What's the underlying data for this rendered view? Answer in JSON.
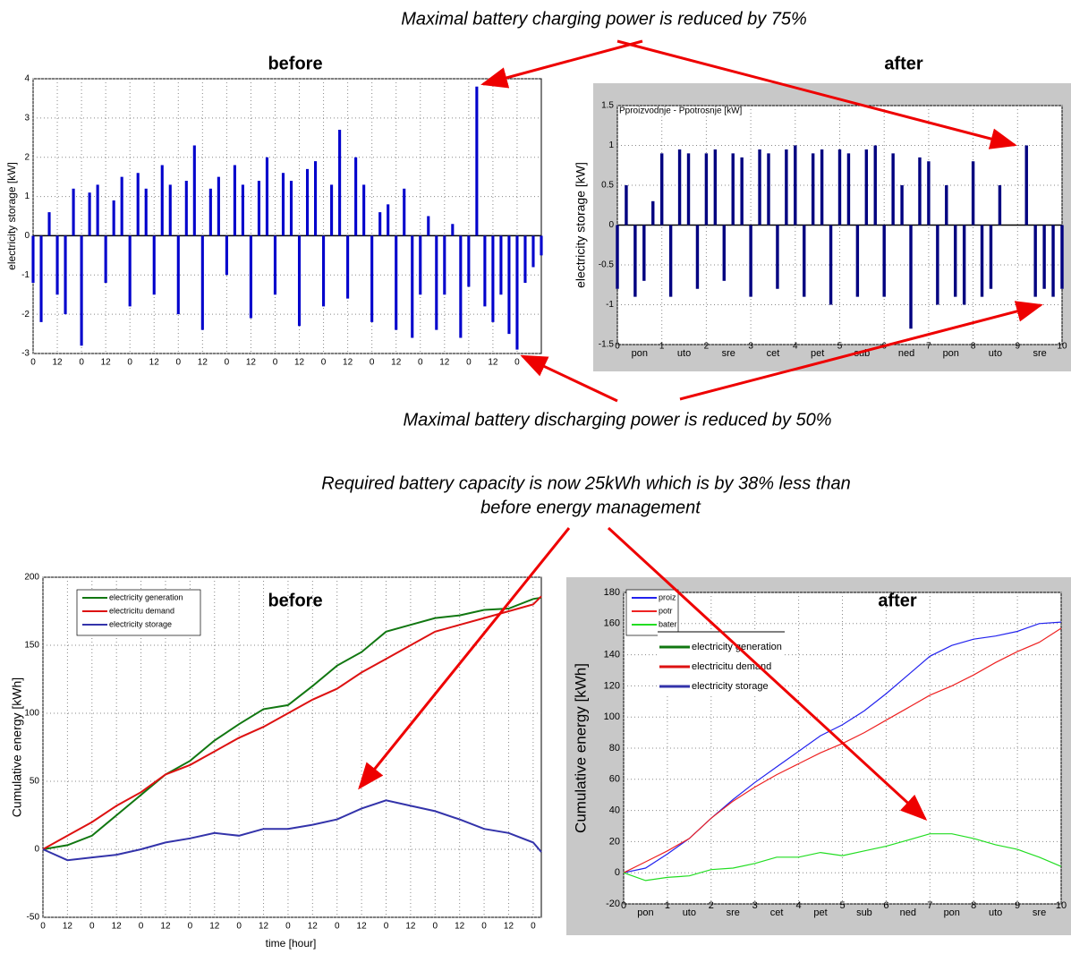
{
  "annotations": [
    "Maximal battery charging power is reduced by 75%",
    "Maximal battery discharging power is reduced by 50%",
    "Required battery capacity is now 25kWh which is by 38% less than",
    "before energy management"
  ],
  "chart_data": [
    {
      "type": "bar",
      "title": "before",
      "ylabel": "electricity storage [kW]",
      "color": "#0000cc",
      "grid": true,
      "x": [
        0,
        4,
        8,
        12,
        16,
        20,
        24,
        28,
        32,
        36,
        40,
        44,
        48,
        52,
        56,
        60,
        64,
        68,
        72,
        76,
        80,
        84,
        88,
        92,
        96,
        100,
        104,
        108,
        112,
        116,
        120,
        124,
        128,
        132,
        136,
        140,
        144,
        148,
        152,
        156,
        160,
        164,
        168,
        172,
        176,
        180,
        184,
        188,
        192,
        196,
        200,
        204,
        208,
        212,
        216,
        220,
        224,
        228,
        232,
        236,
        240,
        244,
        248,
        252
      ],
      "values": [
        -1.2,
        -2.2,
        0.6,
        -1.5,
        -2.0,
        1.2,
        -2.8,
        1.1,
        1.3,
        -1.2,
        0.9,
        1.5,
        -1.8,
        1.6,
        1.2,
        -1.5,
        1.8,
        1.3,
        -2.0,
        1.4,
        2.3,
        -2.4,
        1.2,
        1.5,
        -1.0,
        1.8,
        1.3,
        -2.1,
        1.4,
        2.0,
        -1.5,
        1.6,
        1.4,
        -2.3,
        1.7,
        1.9,
        -1.8,
        1.3,
        2.7,
        -1.6,
        2.0,
        1.3,
        -2.2,
        0.6,
        0.8,
        -2.4,
        1.2,
        -2.6,
        -1.5,
        0.5,
        -2.4,
        -1.5,
        0.3,
        -2.6,
        -1.3,
        3.8,
        -1.8,
        -2.2,
        -1.5,
        -2.5,
        -2.9,
        -1.2,
        -0.8,
        -0.5
      ],
      "xlim": [
        0,
        252
      ],
      "ylim": [
        -3,
        4
      ],
      "yticks": [
        -3,
        -2,
        -1,
        0,
        1,
        2,
        3,
        4
      ],
      "xticks": [
        0,
        12,
        {
          "value": 24,
          "label": "0"
        },
        {
          "value": 36,
          "label": "12"
        },
        {
          "value": 48,
          "label": "0"
        },
        {
          "value": 60,
          "label": "12"
        },
        {
          "value": 72,
          "label": "0"
        },
        {
          "value": 84,
          "label": "12"
        },
        {
          "value": 96,
          "label": "0"
        },
        {
          "value": 108,
          "label": "12"
        },
        {
          "value": 120,
          "label": "0"
        },
        {
          "value": 132,
          "label": "12"
        },
        {
          "value": 144,
          "label": "0"
        },
        {
          "value": 156,
          "label": "12"
        },
        {
          "value": 168,
          "label": "0"
        },
        {
          "value": 180,
          "label": "12"
        },
        {
          "value": 192,
          "label": "0"
        },
        {
          "value": 204,
          "label": "12"
        },
        {
          "value": 216,
          "label": "0"
        },
        {
          "value": 228,
          "label": "12"
        },
        {
          "value": 240,
          "label": "0"
        }
      ]
    },
    {
      "type": "bar",
      "title": "after",
      "plot_title": "Pproizvodnje - Ppotrosnje [kW]",
      "ylabel": "electricity storage [kW]",
      "color": "#000080",
      "background": "#c8c8c8",
      "grid": true,
      "x": [
        0,
        0.2,
        0.4,
        0.6,
        0.8,
        1,
        1.2,
        1.4,
        1.6,
        1.8,
        2,
        2.2,
        2.4,
        2.6,
        2.8,
        3,
        3.2,
        3.4,
        3.6,
        3.8,
        4,
        4.2,
        4.4,
        4.6,
        4.8,
        5,
        5.2,
        5.4,
        5.6,
        5.8,
        6,
        6.2,
        6.4,
        6.6,
        6.8,
        7,
        7.2,
        7.4,
        7.6,
        7.8,
        8,
        8.2,
        8.4,
        8.6,
        8.8,
        9,
        9.2,
        9.4,
        9.6,
        9.8,
        10
      ],
      "values": [
        -0.8,
        0.5,
        -0.9,
        -0.7,
        0.3,
        0.9,
        -0.9,
        0.95,
        0.9,
        -0.8,
        0.9,
        0.95,
        -0.7,
        0.9,
        0.85,
        -0.9,
        0.95,
        0.9,
        -0.8,
        0.95,
        1.0,
        -0.9,
        0.9,
        0.95,
        -1.0,
        0.95,
        0.9,
        -0.9,
        0.95,
        1.0,
        -0.9,
        0.9,
        0.5,
        -1.3,
        0.85,
        0.8,
        -1.0,
        0.5,
        -0.9,
        -1.0,
        0.8,
        -0.9,
        -0.8,
        0.5,
        0,
        0,
        1.0,
        -0.9,
        -0.8,
        -0.9,
        -0.8
      ],
      "xlim": [
        0,
        10
      ],
      "ylim": [
        -1.5,
        1.5
      ],
      "yticks": [
        -1.5,
        -1,
        -0.5,
        0,
        0.5,
        1,
        1.5
      ],
      "xticks": [
        0,
        1,
        2,
        3,
        4,
        5,
        6,
        7,
        8,
        9,
        10
      ],
      "day_labels": [
        "pon",
        "uto",
        "sre",
        "cet",
        "pet",
        "sub",
        "ned",
        "pon",
        "uto",
        "sre"
      ]
    },
    {
      "type": "line",
      "title": "before",
      "ylabel": "Cumulative energy [kWh]",
      "xlabel": "time [hour]",
      "grid": true,
      "x": [
        0,
        12,
        24,
        36,
        48,
        60,
        72,
        84,
        96,
        108,
        120,
        132,
        144,
        156,
        168,
        180,
        192,
        204,
        216,
        228,
        240,
        244
      ],
      "series": [
        {
          "name": "electricity generation",
          "color": "#117711",
          "values": [
            0,
            3,
            10,
            25,
            40,
            55,
            65,
            80,
            92,
            103,
            106,
            120,
            135,
            145,
            160,
            165,
            170,
            172,
            176,
            177,
            184,
            185
          ]
        },
        {
          "name": "electricitu demand",
          "color": "#dd1111",
          "values": [
            0,
            10,
            20,
            32,
            42,
            55,
            62,
            72,
            82,
            90,
            100,
            110,
            118,
            130,
            140,
            150,
            160,
            165,
            170,
            175,
            180,
            186
          ]
        },
        {
          "name": "electricity storage",
          "color": "#3333aa",
          "values": [
            0,
            -8,
            -6,
            -4,
            0,
            5,
            8,
            12,
            10,
            15,
            15,
            18,
            22,
            30,
            36,
            32,
            28,
            22,
            15,
            12,
            5,
            -2
          ]
        }
      ],
      "xlim": [
        0,
        244
      ],
      "ylim": [
        -50,
        200
      ],
      "yticks": [
        -50,
        0,
        50,
        100,
        150,
        200
      ],
      "xticks": [
        0,
        12,
        {
          "value": 24,
          "label": "0"
        },
        {
          "value": 36,
          "label": "12"
        },
        {
          "value": 48,
          "label": "0"
        },
        {
          "value": 60,
          "label": "12"
        },
        {
          "value": 72,
          "label": "0"
        },
        {
          "value": 84,
          "label": "12"
        },
        {
          "value": 96,
          "label": "0"
        },
        {
          "value": 108,
          "label": "12"
        },
        {
          "value": 120,
          "label": "0"
        },
        {
          "value": 132,
          "label": "12"
        },
        {
          "value": 144,
          "label": "0"
        },
        {
          "value": 156,
          "label": "12"
        },
        {
          "value": 168,
          "label": "0"
        },
        {
          "value": 180,
          "label": "12"
        },
        {
          "value": 192,
          "label": "0"
        },
        {
          "value": 204,
          "label": "12"
        },
        {
          "value": 216,
          "label": "0"
        },
        {
          "value": 228,
          "label": "12"
        },
        {
          "value": 240,
          "label": "0"
        }
      ]
    },
    {
      "type": "line",
      "title": "after",
      "ylabel": "Cumulative energy [kWh]",
      "background": "#c8c8c8",
      "grid": true,
      "x": [
        0,
        0.5,
        1,
        1.5,
        2,
        2.5,
        3,
        3.5,
        4,
        4.5,
        5,
        5.5,
        6,
        6.5,
        7,
        7.5,
        8,
        8.5,
        9,
        9.5,
        10
      ],
      "series": [
        {
          "name": "proiz",
          "color": "#2222ee",
          "values": [
            0,
            3,
            12,
            22,
            35,
            47,
            58,
            68,
            78,
            88,
            95,
            104,
            115,
            127,
            139,
            146,
            150,
            152,
            155,
            160,
            161
          ]
        },
        {
          "name": "potr",
          "color": "#ee2222",
          "values": [
            0,
            7,
            14,
            22,
            35,
            46,
            55,
            63,
            70,
            77,
            83,
            90,
            98,
            106,
            114,
            120,
            127,
            135,
            142,
            148,
            157
          ]
        },
        {
          "name": "bater",
          "color": "#22dd22",
          "values": [
            0,
            -5,
            -3,
            -2,
            2,
            3,
            6,
            10,
            10,
            13,
            11,
            14,
            17,
            21,
            25,
            25,
            22,
            18,
            15,
            10,
            4
          ]
        }
      ],
      "overlay_legend": [
        {
          "name": "electricity generation",
          "color": "#117711"
        },
        {
          "name": "electricitu demand",
          "color": "#dd1111"
        },
        {
          "name": "electricity storage",
          "color": "#3333aa"
        }
      ],
      "xlim": [
        0,
        10
      ],
      "ylim": [
        -20,
        180
      ],
      "yticks": [
        -20,
        0,
        20,
        40,
        60,
        80,
        100,
        120,
        140,
        160,
        180
      ],
      "xticks": [
        0,
        1,
        2,
        3,
        4,
        5,
        6,
        7,
        8,
        9,
        10
      ],
      "day_labels": [
        "pon",
        "uto",
        "sre",
        "cet",
        "pet",
        "sub",
        "ned",
        "pon",
        "uto",
        "sre"
      ]
    }
  ]
}
